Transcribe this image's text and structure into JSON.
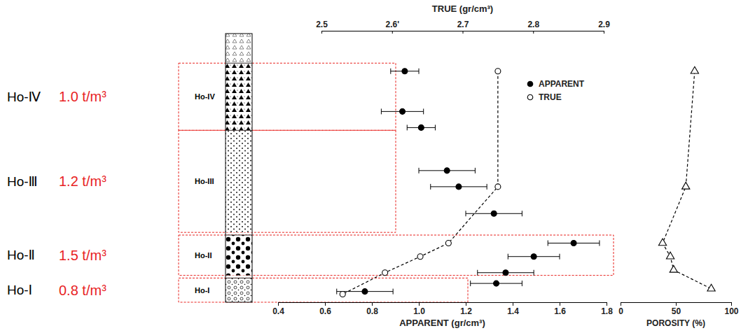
{
  "chart_data": [
    {
      "type": "scatter",
      "xlabel": "APPARENT (gr/cm³)",
      "x2label": "TRUE (gr/cm³)",
      "xlim": [
        0.4,
        1.8
      ],
      "xticks": [
        0.4,
        0.6,
        0.8,
        {
          "value": 1.0,
          "label": "1.0"
        },
        1.2,
        1.4,
        1.6,
        1.8
      ],
      "x2lim": [
        2.5,
        2.9
      ],
      "x2ticks": [
        2.5,
        {
          "value": 2.6,
          "label": "2.6'"
        },
        2.7,
        2.8,
        2.9
      ],
      "ylim": [
        0,
        100
      ],
      "tick_labels": "x",
      "legend": "upper right",
      "series": [
        {
          "name": "APPARENT",
          "type": "scatter",
          "marker": "filled-circle",
          "color": "#000000",
          "x": [
            0.94,
            0.93,
            1.01,
            1.12,
            1.17,
            1.32,
            1.66,
            1.49,
            1.37,
            1.33,
            0.77
          ],
          "x_error": [
            0.06,
            0.09,
            0.06,
            0.12,
            0.12,
            0.12,
            0.11,
            0.11,
            0.12,
            0.11,
            0.12
          ],
          "y": [
            86,
            71,
            65,
            49,
            43,
            33,
            22,
            17,
            11,
            7,
            4
          ]
        },
        {
          "name": "TRUE",
          "type": "line",
          "axis": "x2",
          "marker": "open-circle",
          "line_style": "dashed",
          "color": "#000000",
          "x": [
            2.75,
            2.75,
            2.68,
            2.64,
            2.59,
            2.53
          ],
          "y": [
            86,
            43,
            22,
            17,
            11,
            3
          ]
        }
      ]
    },
    {
      "type": "line",
      "xlabel": "POROSITY (%)",
      "xlim": [
        0,
        100
      ],
      "xticks": [
        0,
        50,
        100
      ],
      "tick_labels": "x",
      "series": [
        {
          "type": "line",
          "marker": "open-triangle",
          "line_style": "dashed",
          "color": "#000000",
          "x": [
            67,
            59,
            38,
            45,
            48,
            82
          ],
          "y": [
            86,
            43,
            22,
            17,
            12,
            5
          ]
        }
      ]
    }
  ],
  "units": [
    {
      "name": "Ho-Ⅳ",
      "label": "Ho-IV",
      "density": "1.0 t/m³",
      "range": [
        64,
        89
      ]
    },
    {
      "name": "Ho-Ⅲ",
      "label": "Ho-III",
      "density": "1.2 t/m³",
      "range": [
        26,
        64
      ]
    },
    {
      "name": "Ho-Ⅱ",
      "label": "Ho-II",
      "density": "1.5 t/m³",
      "range": [
        10,
        25
      ]
    },
    {
      "name": "Ho-Ⅰ",
      "label": "Ho-I",
      "density": "0.8 t/m³",
      "range": [
        0,
        9
      ]
    }
  ]
}
